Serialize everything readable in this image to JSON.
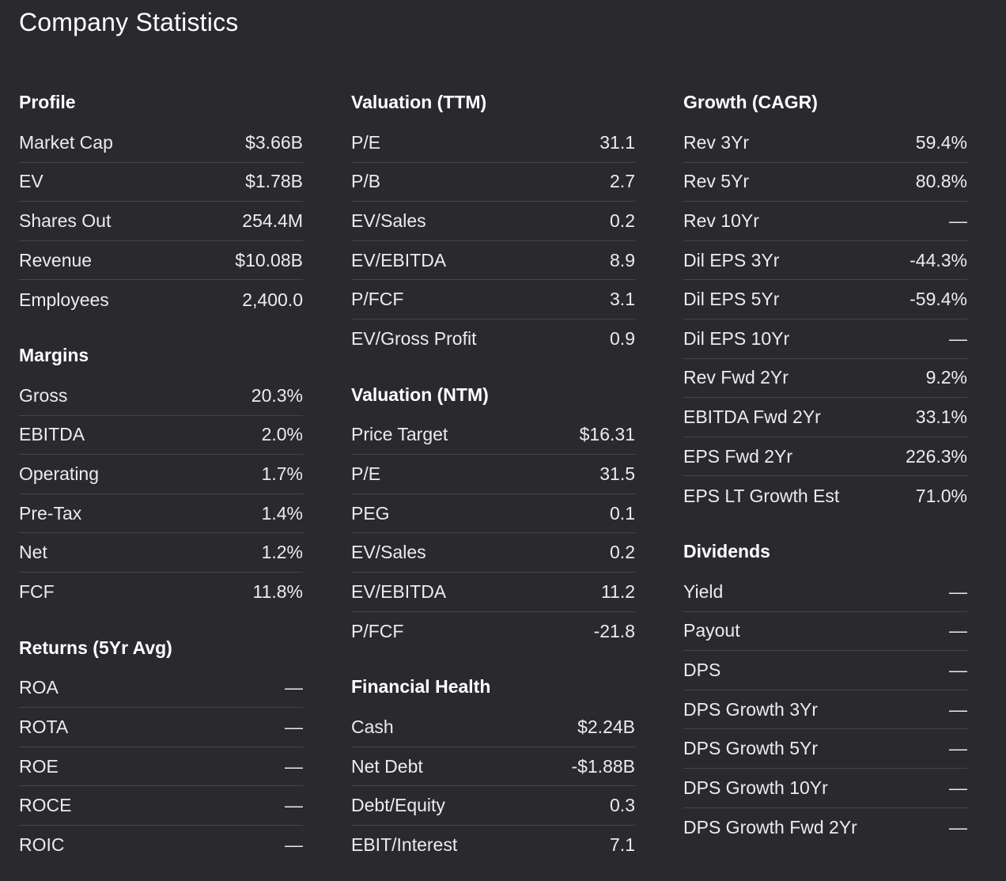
{
  "page": {
    "title": "Company Statistics"
  },
  "columns": [
    {
      "sections": [
        {
          "title": "Profile",
          "rows": [
            {
              "label": "Market Cap",
              "value": "$3.66B"
            },
            {
              "label": "EV",
              "value": "$1.78B"
            },
            {
              "label": "Shares Out",
              "value": "254.4M"
            },
            {
              "label": "Revenue",
              "value": "$10.08B"
            },
            {
              "label": "Employees",
              "value": "2,400.0"
            }
          ]
        },
        {
          "title": "Margins",
          "rows": [
            {
              "label": "Gross",
              "value": "20.3%"
            },
            {
              "label": "EBITDA",
              "value": "2.0%"
            },
            {
              "label": "Operating",
              "value": "1.7%"
            },
            {
              "label": "Pre-Tax",
              "value": "1.4%"
            },
            {
              "label": "Net",
              "value": "1.2%"
            },
            {
              "label": "FCF",
              "value": "11.8%"
            }
          ]
        },
        {
          "title": "Returns (5Yr Avg)",
          "rows": [
            {
              "label": "ROA",
              "value": "—"
            },
            {
              "label": "ROTA",
              "value": "—"
            },
            {
              "label": "ROE",
              "value": "—"
            },
            {
              "label": "ROCE",
              "value": "—"
            },
            {
              "label": "ROIC",
              "value": "—"
            }
          ]
        }
      ]
    },
    {
      "sections": [
        {
          "title": "Valuation (TTM)",
          "rows": [
            {
              "label": "P/E",
              "value": "31.1"
            },
            {
              "label": "P/B",
              "value": "2.7"
            },
            {
              "label": "EV/Sales",
              "value": "0.2"
            },
            {
              "label": "EV/EBITDA",
              "value": "8.9"
            },
            {
              "label": "P/FCF",
              "value": "3.1"
            },
            {
              "label": "EV/Gross Profit",
              "value": "0.9"
            }
          ]
        },
        {
          "title": "Valuation (NTM)",
          "rows": [
            {
              "label": "Price Target",
              "value": "$16.31"
            },
            {
              "label": "P/E",
              "value": "31.5"
            },
            {
              "label": "PEG",
              "value": "0.1"
            },
            {
              "label": "EV/Sales",
              "value": "0.2"
            },
            {
              "label": "EV/EBITDA",
              "value": "11.2"
            },
            {
              "label": "P/FCF",
              "value": "-21.8"
            }
          ]
        },
        {
          "title": "Financial Health",
          "rows": [
            {
              "label": "Cash",
              "value": "$2.24B"
            },
            {
              "label": "Net Debt",
              "value": "-$1.88B"
            },
            {
              "label": "Debt/Equity",
              "value": "0.3"
            },
            {
              "label": "EBIT/Interest",
              "value": "7.1"
            }
          ]
        }
      ]
    },
    {
      "sections": [
        {
          "title": "Growth (CAGR)",
          "rows": [
            {
              "label": "Rev 3Yr",
              "value": "59.4%"
            },
            {
              "label": "Rev 5Yr",
              "value": "80.8%"
            },
            {
              "label": "Rev 10Yr",
              "value": "—"
            },
            {
              "label": "Dil EPS 3Yr",
              "value": "-44.3%"
            },
            {
              "label": "Dil EPS 5Yr",
              "value": "-59.4%"
            },
            {
              "label": "Dil EPS 10Yr",
              "value": "—"
            },
            {
              "label": "Rev Fwd 2Yr",
              "value": "9.2%"
            },
            {
              "label": "EBITDA Fwd 2Yr",
              "value": "33.1%"
            },
            {
              "label": "EPS Fwd 2Yr",
              "value": "226.3%"
            },
            {
              "label": "EPS LT Growth Est",
              "value": "71.0%"
            }
          ]
        },
        {
          "title": "Dividends",
          "rows": [
            {
              "label": "Yield",
              "value": "—"
            },
            {
              "label": "Payout",
              "value": "—"
            },
            {
              "label": "DPS",
              "value": "—"
            },
            {
              "label": "DPS Growth 3Yr",
              "value": "—"
            },
            {
              "label": "DPS Growth 5Yr",
              "value": "—"
            },
            {
              "label": "DPS Growth 10Yr",
              "value": "—"
            },
            {
              "label": "DPS Growth Fwd 2Yr",
              "value": "—"
            }
          ]
        }
      ]
    }
  ]
}
